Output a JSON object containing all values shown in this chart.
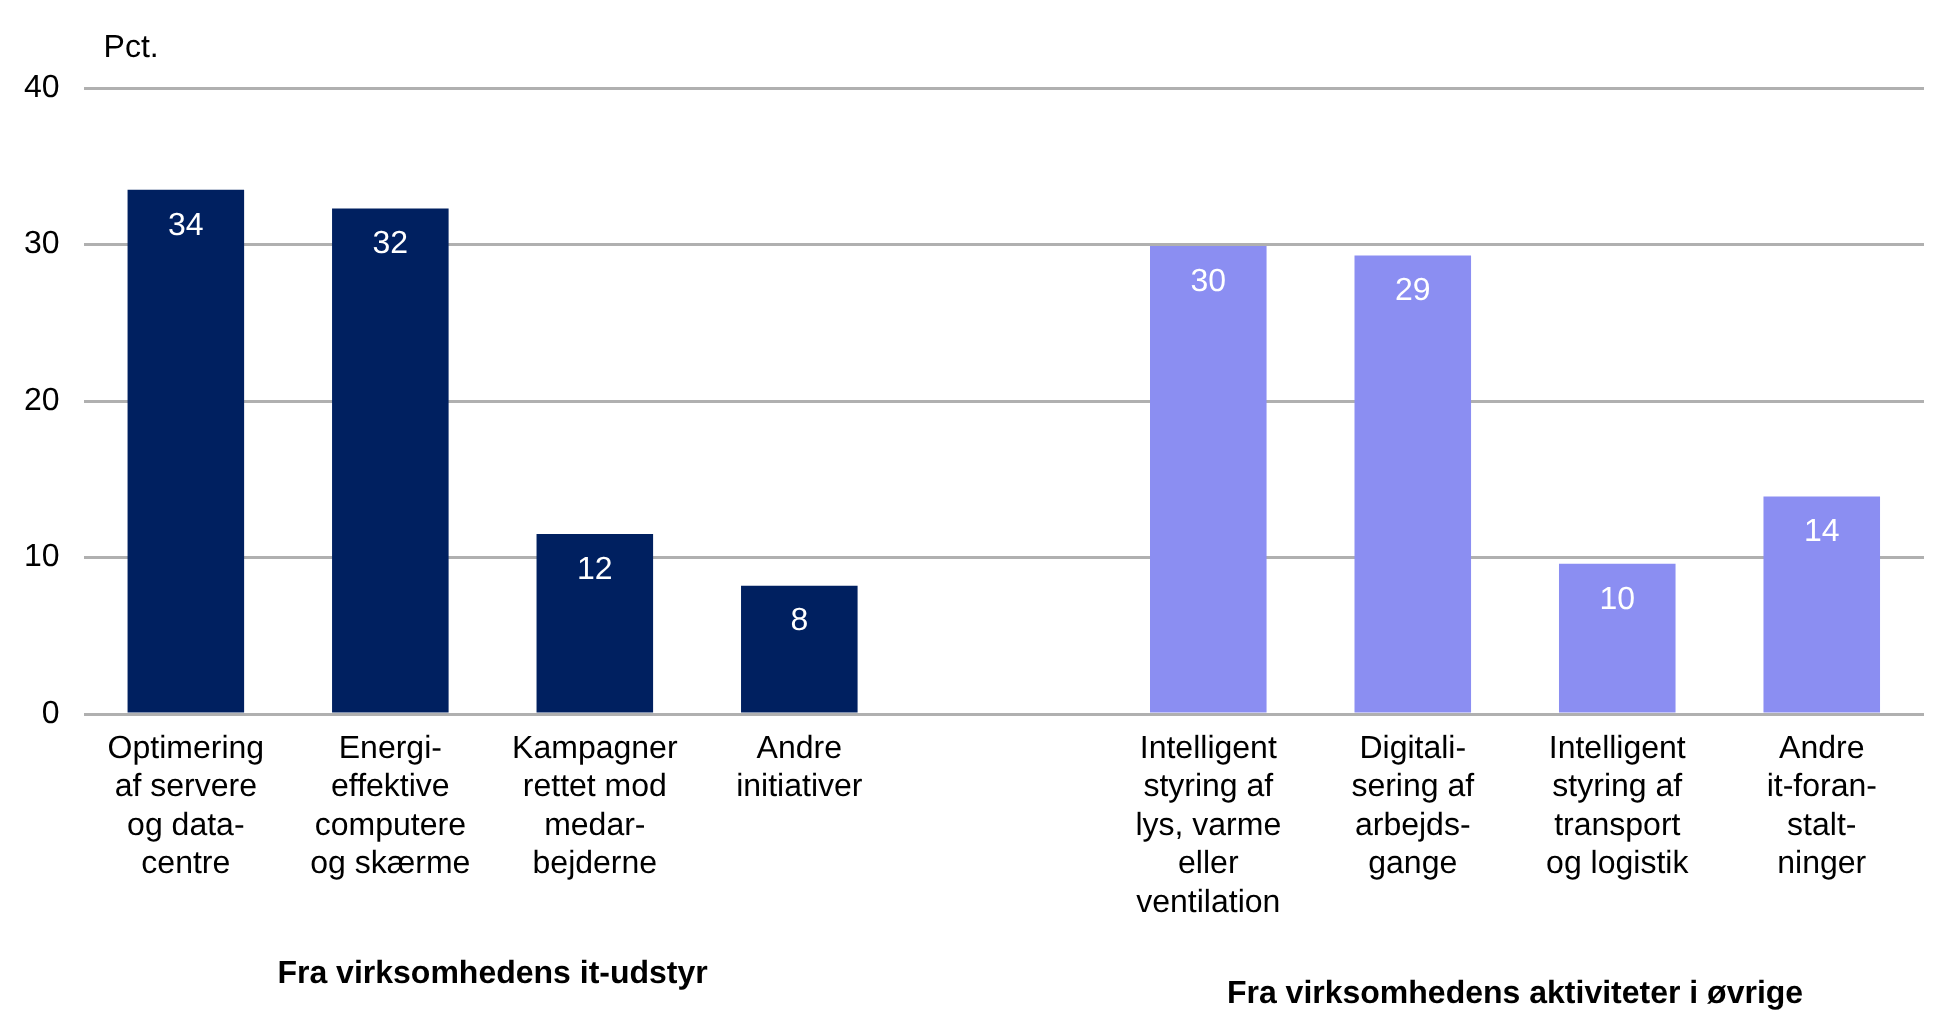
{
  "chart_data": {
    "type": "bar",
    "ylabel": "Pct.",
    "categories": [
      "Optimering\naf servere\nog data-\ncentre",
      "Energi-\neffektive\ncomputere\nog skærme",
      "Kampagner\nrettet mod\nmedar-\nbejderne",
      "Andre\ninitiativer",
      null,
      "Intelligent\nstyring af\nlys, varme\neller\nventilation",
      "Digitali-\nsering af\narbejds-\ngange",
      "Intelligent\nstyring af\ntransport\nog logistik",
      "Andre\nit-foran-\nstalt-\nninger"
    ],
    "values": [
      33.5,
      32.3,
      11.5,
      8.2,
      null,
      29.9,
      29.3,
      9.6,
      13.9
    ],
    "value_labels": [
      "34",
      "32",
      "12",
      "8",
      null,
      "30",
      "29",
      "10",
      "14"
    ],
    "colors": [
      "#002060",
      "#002060",
      "#002060",
      "#002060",
      "#8b8ef2",
      "#8b8ef2",
      "#8b8ef2",
      "#8b8ef2",
      "#8b8ef2"
    ],
    "ylim": [
      0,
      40
    ],
    "yticks": [
      0,
      10,
      20,
      30,
      40
    ],
    "grid": "y",
    "legend": false,
    "annotations": [
      "Fra virksomhedens it-udstyr",
      "Fra virksomhedens aktiviteter i øvrige"
    ]
  }
}
